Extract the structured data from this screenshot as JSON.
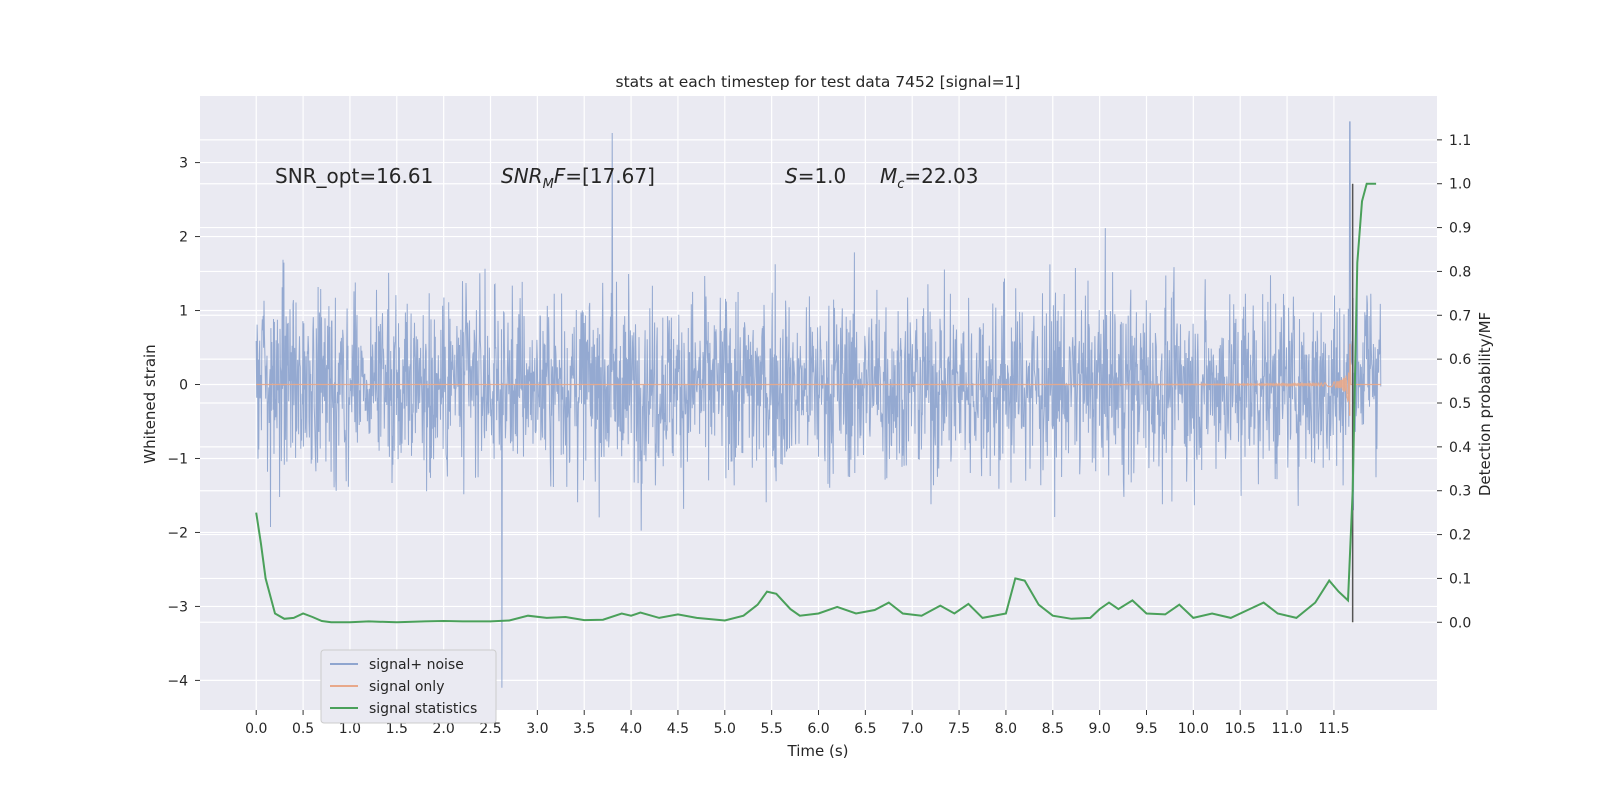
{
  "chart_data": {
    "type": "line",
    "title": "stats at each timestep for test data 7452 [signal=1]",
    "xlabel": "Time (s)",
    "ylabel_left": "Whitened strain",
    "ylabel_right": "Detection probability/MF",
    "xlim": [
      -0.6,
      12.6
    ],
    "ylim_left": [
      -4.4,
      3.9
    ],
    "ylim_right": [
      -0.2,
      1.2
    ],
    "x_ticks": [
      "0.0",
      "0.5",
      "1.0",
      "1.5",
      "2.0",
      "2.5",
      "3.0",
      "3.5",
      "4.0",
      "4.5",
      "5.0",
      "5.5",
      "6.0",
      "6.5",
      "7.0",
      "7.5",
      "8.0",
      "8.5",
      "9.0",
      "9.5",
      "10.0",
      "10.5",
      "11.0",
      "11.5"
    ],
    "y_ticks_left": [
      "3",
      "2",
      "1",
      "0",
      "−1",
      "−2",
      "−3",
      "−4"
    ],
    "y_ticks_right": [
      "1.1",
      "1.0",
      "0.9",
      "0.8",
      "0.7",
      "0.6",
      "0.5",
      "0.4",
      "0.3",
      "0.2",
      "0.1",
      "0.0"
    ],
    "grid": true,
    "legend_position": "lower-left",
    "annotations": {
      "snr_opt": "SNR_opt=16.61",
      "snr_mf_main": "SNR",
      "snr_mf_sub": "M",
      "snr_mf_rest": "F",
      "snr_mf_value": "=[17.67]",
      "s_label": "S",
      "s_value": "=1.0",
      "mc_label": "M",
      "mc_sub": "c",
      "mc_value": "=22.03"
    },
    "marker_line_x": 11.7,
    "series": [
      {
        "name": "signal+ noise",
        "color": "#8fa5cf",
        "description_range": [
          -4.1,
          3.55
        ],
        "x_range": [
          0.0,
          12.0
        ]
      },
      {
        "name": "signal only",
        "color": "#e8a88a",
        "x_range": [
          0.0,
          12.0
        ],
        "chirp_peak_x": 11.68,
        "chirp_peak_y": 2.7
      },
      {
        "name": "signal statistics",
        "color": "#4aa05a",
        "points": [
          [
            0.0,
            0.25
          ],
          [
            0.05,
            0.18
          ],
          [
            0.1,
            0.1
          ],
          [
            0.2,
            0.02
          ],
          [
            0.3,
            0.008
          ],
          [
            0.4,
            0.01
          ],
          [
            0.5,
            0.02
          ],
          [
            0.6,
            0.012
          ],
          [
            0.7,
            0.003
          ],
          [
            0.8,
            0.0
          ],
          [
            1.0,
            0.0
          ],
          [
            1.2,
            0.002
          ],
          [
            1.5,
            0.0
          ],
          [
            1.8,
            0.002
          ],
          [
            2.0,
            0.003
          ],
          [
            2.2,
            0.002
          ],
          [
            2.5,
            0.002
          ],
          [
            2.7,
            0.004
          ],
          [
            2.9,
            0.015
          ],
          [
            3.1,
            0.01
          ],
          [
            3.3,
            0.012
          ],
          [
            3.5,
            0.005
          ],
          [
            3.7,
            0.006
          ],
          [
            3.9,
            0.02
          ],
          [
            4.0,
            0.015
          ],
          [
            4.1,
            0.022
          ],
          [
            4.3,
            0.01
          ],
          [
            4.5,
            0.018
          ],
          [
            4.7,
            0.01
          ],
          [
            5.0,
            0.004
          ],
          [
            5.2,
            0.015
          ],
          [
            5.35,
            0.04
          ],
          [
            5.45,
            0.07
          ],
          [
            5.55,
            0.065
          ],
          [
            5.7,
            0.03
          ],
          [
            5.8,
            0.015
          ],
          [
            6.0,
            0.02
          ],
          [
            6.2,
            0.035
          ],
          [
            6.4,
            0.02
          ],
          [
            6.6,
            0.028
          ],
          [
            6.75,
            0.045
          ],
          [
            6.9,
            0.02
          ],
          [
            7.1,
            0.015
          ],
          [
            7.3,
            0.038
          ],
          [
            7.45,
            0.02
          ],
          [
            7.6,
            0.042
          ],
          [
            7.75,
            0.01
          ],
          [
            8.0,
            0.02
          ],
          [
            8.1,
            0.1
          ],
          [
            8.2,
            0.095
          ],
          [
            8.35,
            0.04
          ],
          [
            8.5,
            0.015
          ],
          [
            8.7,
            0.008
          ],
          [
            8.9,
            0.01
          ],
          [
            9.0,
            0.03
          ],
          [
            9.1,
            0.045
          ],
          [
            9.2,
            0.03
          ],
          [
            9.35,
            0.05
          ],
          [
            9.5,
            0.02
          ],
          [
            9.7,
            0.018
          ],
          [
            9.85,
            0.04
          ],
          [
            10.0,
            0.01
          ],
          [
            10.2,
            0.02
          ],
          [
            10.4,
            0.01
          ],
          [
            10.6,
            0.03
          ],
          [
            10.75,
            0.045
          ],
          [
            10.9,
            0.02
          ],
          [
            11.1,
            0.01
          ],
          [
            11.3,
            0.045
          ],
          [
            11.45,
            0.095
          ],
          [
            11.55,
            0.07
          ],
          [
            11.65,
            0.05
          ],
          [
            11.7,
            0.3
          ],
          [
            11.75,
            0.82
          ],
          [
            11.8,
            0.96
          ],
          [
            11.85,
            1.0
          ],
          [
            11.95,
            1.0
          ]
        ]
      }
    ]
  }
}
